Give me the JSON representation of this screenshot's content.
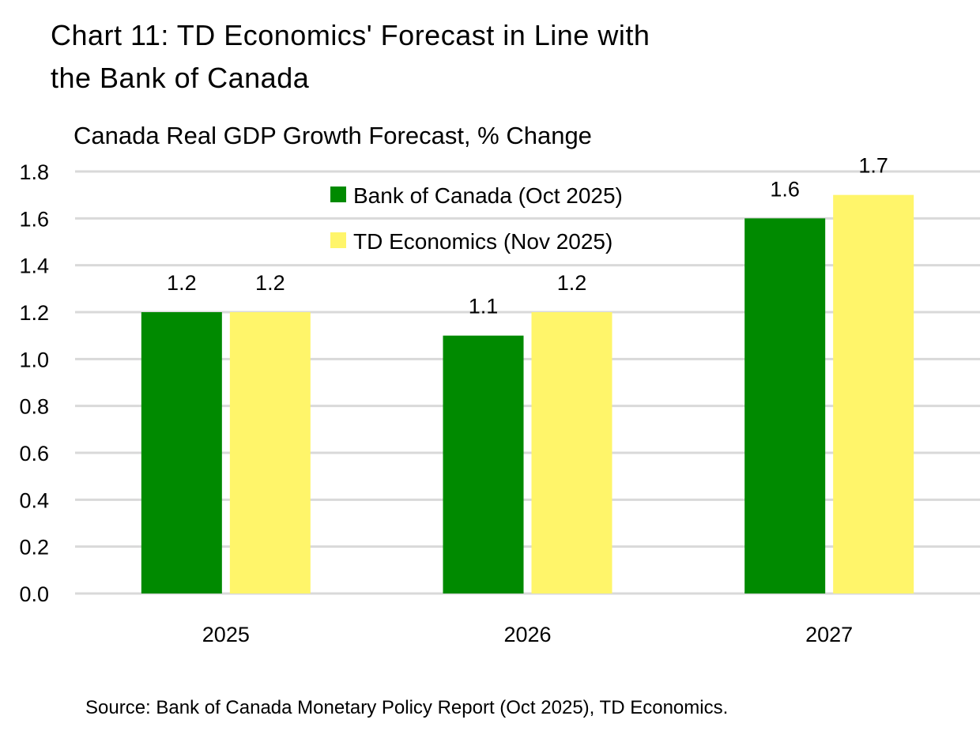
{
  "title_line1": "Chart 11: TD Economics' Forecast in Line with",
  "title_line2": "the Bank of Canada",
  "subtitle": "Canada Real GDP Growth Forecast, % Change",
  "source": "Source: Bank of Canada Monetary Policy Report (Oct 2025), TD Economics.",
  "chart_data": {
    "type": "bar",
    "categories": [
      "2025",
      "2026",
      "2027"
    ],
    "series": [
      {
        "name": "Bank of Canada (Oct 2025)",
        "values": [
          1.2,
          1.1,
          1.6
        ],
        "color": "#008a00"
      },
      {
        "name": "TD Economics (Nov 2025)",
        "values": [
          1.2,
          1.2,
          1.7
        ],
        "color": "#fff56a"
      }
    ],
    "ylim": [
      0,
      1.8
    ],
    "yticks": [
      "0.0",
      "0.2",
      "0.4",
      "0.6",
      "0.8",
      "1.0",
      "1.2",
      "1.4",
      "1.6",
      "1.8"
    ],
    "grid": true,
    "legend": "top-center",
    "data_labels": true
  }
}
